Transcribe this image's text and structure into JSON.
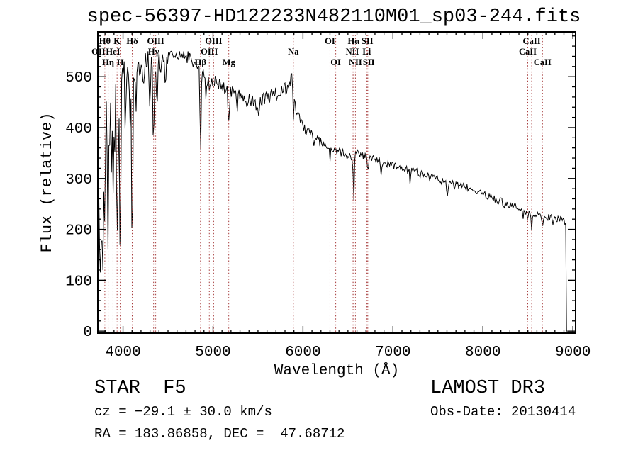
{
  "title": "spec-56397-HD122233N482110M01_sp03-244.fits",
  "annotations": {
    "class_label": "STAR  F5",
    "survey": "LAMOST DR3",
    "cz": "cz = −29.1 ± 30.0 km/s",
    "obs_date": "Obs-Date: 20130414",
    "radec": "RA = 183.86858, DEC =  47.68712"
  },
  "colors": {
    "background": "#ffffff",
    "axis": "#000000",
    "spectrum": "#000000",
    "marker": "#a63a3a",
    "label": "#000000"
  },
  "chart_data": {
    "type": "line",
    "title": "spec-56397-HD122233N482110M01_sp03-244.fits",
    "xlabel": "Wavelength (Å)",
    "ylabel": "Flux (relative)",
    "xlim": [
      3720,
      9030
    ],
    "ylim": [
      -4,
      588
    ],
    "x_ticks": [
      4000,
      5000,
      6000,
      7000,
      8000,
      9000
    ],
    "x_minor_step": 100,
    "y_ticks": [
      0,
      100,
      200,
      300,
      400,
      500
    ],
    "y_minor_step": 20,
    "grid": false,
    "legend": "none",
    "flux_zero_below": 3726,
    "flux_zero_above": 8928,
    "continuum": [
      [
        3724,
        430
      ],
      [
        3740,
        480
      ],
      [
        3780,
        470
      ],
      [
        3830,
        490
      ],
      [
        3880,
        495
      ],
      [
        3930,
        500
      ],
      [
        3980,
        505
      ],
      [
        4050,
        515
      ],
      [
        4150,
        520
      ],
      [
        4250,
        528
      ],
      [
        4400,
        532
      ],
      [
        4550,
        538
      ],
      [
        4650,
        542
      ],
      [
        4750,
        535
      ],
      [
        4820,
        520
      ],
      [
        4900,
        500
      ],
      [
        4960,
        495
      ],
      [
        5050,
        490
      ],
      [
        5120,
        478
      ],
      [
        5250,
        465
      ],
      [
        5350,
        455
      ],
      [
        5450,
        448
      ],
      [
        5550,
        452
      ],
      [
        5650,
        462
      ],
      [
        5750,
        470
      ],
      [
        5830,
        480
      ],
      [
        5880,
        493
      ],
      [
        5905,
        455
      ],
      [
        5930,
        430
      ],
      [
        6000,
        400
      ],
      [
        6100,
        385
      ],
      [
        6200,
        370
      ],
      [
        6320,
        355
      ],
      [
        6450,
        350
      ],
      [
        6540,
        345
      ],
      [
        6620,
        350
      ],
      [
        6750,
        340
      ],
      [
        6900,
        332
      ],
      [
        7100,
        322
      ],
      [
        7300,
        310
      ],
      [
        7500,
        298
      ],
      [
        7700,
        290
      ],
      [
        7900,
        278
      ],
      [
        8100,
        262
      ],
      [
        8300,
        248
      ],
      [
        8500,
        235
      ],
      [
        8700,
        225
      ],
      [
        8850,
        220
      ],
      [
        8920,
        215
      ]
    ],
    "absorption_features": [
      {
        "wavelength": 3727,
        "min_flux": 300,
        "sigma": 6
      },
      {
        "wavelength": 3737,
        "min_flux": 250,
        "sigma": 5
      },
      {
        "wavelength": 3750,
        "min_flux": 135,
        "sigma": 6
      },
      {
        "wavelength": 3762,
        "min_flux": 300,
        "sigma": 4
      },
      {
        "wavelength": 3771,
        "min_flux": 190,
        "sigma": 5
      },
      {
        "wavelength": 3784,
        "min_flux": 280,
        "sigma": 4
      },
      {
        "wavelength": 3798,
        "min_flux": 225,
        "sigma": 6
      },
      {
        "wavelength": 3820,
        "min_flux": 310,
        "sigma": 4
      },
      {
        "wavelength": 3835,
        "min_flux": 140,
        "sigma": 6
      },
      {
        "wavelength": 3856,
        "min_flux": 320,
        "sigma": 4
      },
      {
        "wavelength": 3871,
        "min_flux": 290,
        "sigma": 4
      },
      {
        "wavelength": 3889,
        "min_flux": 230,
        "sigma": 6
      },
      {
        "wavelength": 3910,
        "min_flux": 330,
        "sigma": 4
      },
      {
        "wavelength": 3934,
        "min_flux": 130,
        "sigma": 7
      },
      {
        "wavelength": 3950,
        "min_flux": 320,
        "sigma": 4
      },
      {
        "wavelength": 3969,
        "min_flux": 160,
        "sigma": 7
      },
      {
        "wavelength": 4026,
        "min_flux": 380,
        "sigma": 5
      },
      {
        "wavelength": 4077,
        "min_flux": 400,
        "sigma": 4
      },
      {
        "wavelength": 4102,
        "min_flux": 132,
        "sigma": 7
      },
      {
        "wavelength": 4144,
        "min_flux": 420,
        "sigma": 5
      },
      {
        "wavelength": 4226,
        "min_flux": 430,
        "sigma": 5
      },
      {
        "wavelength": 4300,
        "min_flux": 450,
        "sigma": 6
      },
      {
        "wavelength": 4340,
        "min_flux": 348,
        "sigma": 6
      },
      {
        "wavelength": 4383,
        "min_flux": 450,
        "sigma": 5
      },
      {
        "wavelength": 4471,
        "min_flux": 480,
        "sigma": 5
      },
      {
        "wavelength": 4861,
        "min_flux": 352,
        "sigma": 6
      },
      {
        "wavelength": 4920,
        "min_flux": 460,
        "sigma": 5
      },
      {
        "wavelength": 4957,
        "min_flux": 470,
        "sigma": 4
      },
      {
        "wavelength": 5175,
        "min_flux": 418,
        "sigma": 8
      },
      {
        "wavelength": 5270,
        "min_flux": 440,
        "sigma": 5
      },
      {
        "wavelength": 5893,
        "min_flux": 410,
        "sigma": 5
      },
      {
        "wavelength": 6122,
        "min_flux": 360,
        "sigma": 4
      },
      {
        "wavelength": 6300,
        "min_flux": 340,
        "sigma": 4
      },
      {
        "wavelength": 6495,
        "min_flux": 330,
        "sigma": 4
      },
      {
        "wavelength": 6563,
        "min_flux": 250,
        "sigma": 5
      },
      {
        "wavelength": 6717,
        "min_flux": 325,
        "sigma": 4
      },
      {
        "wavelength": 6867,
        "min_flux": 310,
        "sigma": 6
      },
      {
        "wavelength": 7190,
        "min_flux": 295,
        "sigma": 6
      },
      {
        "wavelength": 7605,
        "min_flux": 265,
        "sigma": 8
      },
      {
        "wavelength": 7680,
        "min_flux": 280,
        "sigma": 4
      },
      {
        "wavelength": 8230,
        "min_flux": 240,
        "sigma": 5
      },
      {
        "wavelength": 8498,
        "min_flux": 208,
        "sigma": 5
      },
      {
        "wavelength": 8542,
        "min_flux": 202,
        "sigma": 6
      },
      {
        "wavelength": 8662,
        "min_flux": 198,
        "sigma": 6
      }
    ],
    "noise_bands": [
      [
        3726,
        3960,
        50,
        0.14,
        210
      ],
      [
        3960,
        4430,
        26,
        0.07,
        150
      ],
      [
        4430,
        5400,
        13,
        0.0,
        0
      ],
      [
        5400,
        5900,
        15,
        0.02,
        30
      ],
      [
        5900,
        6600,
        9,
        0.0,
        0
      ],
      [
        6600,
        7600,
        8,
        0.02,
        25
      ],
      [
        7600,
        9030,
        7,
        0.02,
        20
      ]
    ],
    "line_markers": [
      {
        "label": "OII",
        "wavelength": 3727,
        "row": 2
      },
      {
        "label": "Hθ",
        "wavelength": 3798,
        "row": 1
      },
      {
        "label": "Hη",
        "wavelength": 3835,
        "row": 3
      },
      {
        "label": "HeI",
        "wavelength": 3889,
        "row": 2
      },
      {
        "label": "K",
        "wavelength": 3934,
        "row": 1
      },
      {
        "label": "H",
        "wavelength": 3969,
        "row": 3
      },
      {
        "label": "Hδ",
        "wavelength": 4102,
        "row": 1
      },
      {
        "label": "Hγ",
        "wavelength": 4340,
        "row": 2
      },
      {
        "label": "OIII",
        "wavelength": 4363,
        "row": 1
      },
      {
        "label": "Hβ",
        "wavelength": 4861,
        "row": 3
      },
      {
        "label": "OIII",
        "wavelength": 4959,
        "row": 2
      },
      {
        "label": "OIII",
        "wavelength": 5007,
        "row": 1
      },
      {
        "label": "Mg",
        "wavelength": 5175,
        "row": 3
      },
      {
        "label": "Na",
        "wavelength": 5893,
        "row": 2
      },
      {
        "label": "OI",
        "wavelength": 6300,
        "row": 1
      },
      {
        "label": "OI",
        "wavelength": 6364,
        "row": 3
      },
      {
        "label": "NII",
        "wavelength": 6548,
        "row": 2
      },
      {
        "label": "Hα",
        "wavelength": 6563,
        "row": 1
      },
      {
        "label": "NII",
        "wavelength": 6583,
        "row": 3
      },
      {
        "label": "Li",
        "wavelength": 6708,
        "row": 2
      },
      {
        "label": "SII",
        "wavelength": 6716,
        "row": 1
      },
      {
        "label": "SII",
        "wavelength": 6731,
        "row": 3
      },
      {
        "label": "CaII",
        "wavelength": 8498,
        "row": 2
      },
      {
        "label": "CaII",
        "wavelength": 8542,
        "row": 1
      },
      {
        "label": "CaII",
        "wavelength": 8662,
        "row": 3
      }
    ]
  }
}
